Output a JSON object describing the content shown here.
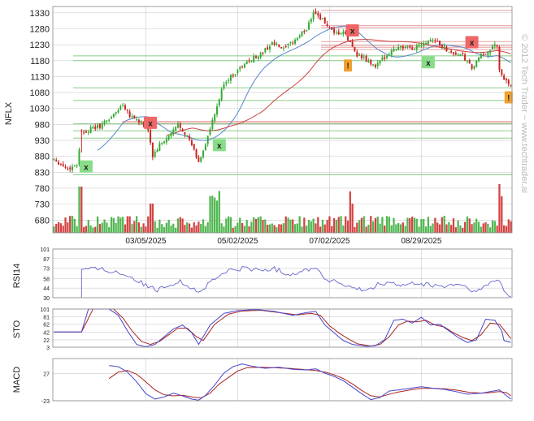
{
  "watermark": "© 2012 Tech Trader ~ www.techtrader.ai",
  "colors": {
    "up": "#33aa33",
    "down": "#cc2222",
    "grid": "#cccccc",
    "sma_short": "#5588cc",
    "sma_long": "#cc4444",
    "support": "#88cc88",
    "resistance": "#e8a0a0",
    "indicator_main": "#4444cc",
    "indicator_signal": "#aa2222",
    "badge_green": "#88dd88",
    "badge_red": "#ee6666",
    "badge_orange": "#f0a030"
  },
  "chart_data": [
    {
      "type": "candlestick",
      "ylabel": "NFLX",
      "y_ticks": [
        "1330",
        "1280",
        "1230",
        "1180",
        "1130",
        "1080",
        "1030",
        "980",
        "930",
        "880",
        "830",
        "780",
        "730",
        "680"
      ],
      "ylim": [
        640,
        1350
      ],
      "x_ticks": [
        "03/05/2025",
        "05/02/2025",
        "07/02/2025",
        "08/29/2025"
      ],
      "x_tick_index": [
        40,
        80,
        120,
        160
      ],
      "n_bars": 200,
      "price_path": [
        [
          0,
          872
        ],
        [
          6,
          840
        ],
        [
          10,
          855
        ],
        [
          12,
          955
        ],
        [
          20,
          975
        ],
        [
          26,
          1010
        ],
        [
          30,
          1045
        ],
        [
          33,
          1010
        ],
        [
          38,
          985
        ],
        [
          41,
          965
        ],
        [
          43,
          880
        ],
        [
          46,
          915
        ],
        [
          50,
          940
        ],
        [
          54,
          980
        ],
        [
          57,
          955
        ],
        [
          60,
          915
        ],
        [
          63,
          860
        ],
        [
          66,
          920
        ],
        [
          68,
          965
        ],
        [
          70,
          1010
        ],
        [
          74,
          1110
        ],
        [
          80,
          1150
        ],
        [
          86,
          1185
        ],
        [
          90,
          1200
        ],
        [
          95,
          1235
        ],
        [
          100,
          1215
        ],
        [
          105,
          1245
        ],
        [
          110,
          1280
        ],
        [
          113,
          1335
        ],
        [
          118,
          1300
        ],
        [
          122,
          1260
        ],
        [
          126,
          1270
        ],
        [
          132,
          1200
        ],
        [
          136,
          1180
        ],
        [
          140,
          1160
        ],
        [
          145,
          1200
        ],
        [
          150,
          1225
        ],
        [
          156,
          1215
        ],
        [
          160,
          1235
        ],
        [
          165,
          1250
        ],
        [
          169,
          1225
        ],
        [
          173,
          1205
        ],
        [
          178,
          1195
        ],
        [
          182,
          1155
        ],
        [
          186,
          1195
        ],
        [
          190,
          1215
        ],
        [
          193,
          1230
        ],
        [
          194,
          1145
        ],
        [
          196,
          1120
        ],
        [
          199,
          1105
        ]
      ],
      "support_levels": [
        1195,
        1180,
        1095,
        1055,
        982,
        960,
        937,
        822
      ],
      "resistance_levels": [
        1338,
        1290,
        1284,
        1240,
        1228,
        1222,
        1215,
        990,
        985
      ],
      "signals": [
        {
          "label": "x",
          "type": "buy",
          "bar": 14,
          "price": 848
        },
        {
          "label": "x",
          "type": "sell",
          "bar": 42,
          "price": 985
        },
        {
          "label": "x",
          "type": "buy",
          "bar": 72,
          "price": 915
        },
        {
          "label": "x",
          "type": "sell",
          "bar": 130,
          "price": 1275
        },
        {
          "label": "!",
          "type": "alert",
          "bar": 128,
          "price": 1165
        },
        {
          "label": "x",
          "type": "buy",
          "bar": 163,
          "price": 1175
        },
        {
          "label": "x",
          "type": "sell",
          "bar": 182,
          "price": 1238
        },
        {
          "label": "!",
          "type": "alert",
          "bar": 198,
          "price": 1065
        }
      ]
    },
    {
      "type": "line",
      "ylabel": "RSI14",
      "y_ticks": [
        "101",
        "87",
        "73",
        "58",
        "44",
        "30"
      ],
      "ylim": [
        30,
        101
      ],
      "path": [
        [
          12,
          72
        ],
        [
          20,
          72
        ],
        [
          28,
          67
        ],
        [
          34,
          60
        ],
        [
          40,
          48
        ],
        [
          45,
          40
        ],
        [
          50,
          50
        ],
        [
          55,
          53
        ],
        [
          60,
          45
        ],
        [
          63,
          37
        ],
        [
          68,
          52
        ],
        [
          75,
          68
        ],
        [
          82,
          73
        ],
        [
          90,
          70
        ],
        [
          96,
          72
        ],
        [
          102,
          64
        ],
        [
          108,
          68
        ],
        [
          112,
          73
        ],
        [
          114,
          75
        ],
        [
          118,
          57
        ],
        [
          124,
          52
        ],
        [
          130,
          43
        ],
        [
          136,
          40
        ],
        [
          140,
          48
        ],
        [
          146,
          52
        ],
        [
          152,
          47
        ],
        [
          158,
          51
        ],
        [
          164,
          48
        ],
        [
          170,
          46
        ],
        [
          176,
          50
        ],
        [
          181,
          43
        ],
        [
          184,
          37
        ],
        [
          190,
          52
        ],
        [
          194,
          55
        ],
        [
          196,
          40
        ],
        [
          199,
          33
        ]
      ]
    },
    {
      "type": "line",
      "ylabel": "STO",
      "y_ticks": [
        "101",
        "81",
        "62",
        "42",
        "22",
        "3"
      ],
      "ylim": [
        3,
        101
      ],
      "series": [
        {
          "path": [
            [
              0,
              42
            ],
            [
              12,
              42
            ],
            [
              15,
              101
            ],
            [
              24,
              101
            ],
            [
              28,
              85
            ],
            [
              32,
              45
            ],
            [
              36,
              10
            ],
            [
              40,
              4
            ],
            [
              44,
              10
            ],
            [
              48,
              30
            ],
            [
              52,
              50
            ],
            [
              56,
              60
            ],
            [
              60,
              40
            ],
            [
              63,
              10
            ],
            [
              68,
              60
            ],
            [
              74,
              90
            ],
            [
              80,
              97
            ],
            [
              88,
              100
            ],
            [
              96,
              95
            ],
            [
              104,
              85
            ],
            [
              110,
              92
            ],
            [
              114,
              95
            ],
            [
              118,
              60
            ],
            [
              122,
              40
            ],
            [
              126,
              20
            ],
            [
              130,
              10
            ],
            [
              136,
              5
            ],
            [
              140,
              7
            ],
            [
              144,
              22
            ],
            [
              148,
              72
            ],
            [
              152,
              75
            ],
            [
              156,
              65
            ],
            [
              160,
              80
            ],
            [
              164,
              60
            ],
            [
              168,
              62
            ],
            [
              172,
              45
            ],
            [
              176,
              28
            ],
            [
              180,
              15
            ],
            [
              184,
              22
            ],
            [
              188,
              75
            ],
            [
              192,
              72
            ],
            [
              195,
              45
            ],
            [
              196,
              20
            ],
            [
              199,
              15
            ]
          ]
        },
        {
          "path": [
            [
              0,
              42
            ],
            [
              12,
              42
            ],
            [
              17,
              101
            ],
            [
              26,
              101
            ],
            [
              30,
              78
            ],
            [
              34,
              45
            ],
            [
              38,
              18
            ],
            [
              42,
              10
            ],
            [
              46,
              18
            ],
            [
              50,
              35
            ],
            [
              54,
              52
            ],
            [
              58,
              52
            ],
            [
              62,
              30
            ],
            [
              65,
              20
            ],
            [
              70,
              62
            ],
            [
              76,
              88
            ],
            [
              82,
              96
            ],
            [
              90,
              98
            ],
            [
              98,
              92
            ],
            [
              106,
              86
            ],
            [
              112,
              90
            ],
            [
              116,
              85
            ],
            [
              120,
              58
            ],
            [
              124,
              40
            ],
            [
              128,
              25
            ],
            [
              132,
              12
            ],
            [
              138,
              6
            ],
            [
              142,
              10
            ],
            [
              146,
              30
            ],
            [
              150,
              60
            ],
            [
              154,
              70
            ],
            [
              158,
              68
            ],
            [
              162,
              72
            ],
            [
              166,
              60
            ],
            [
              170,
              55
            ],
            [
              174,
              40
            ],
            [
              178,
              28
            ],
            [
              182,
              20
            ],
            [
              186,
              35
            ],
            [
              190,
              65
            ],
            [
              194,
              62
            ],
            [
              197,
              40
            ],
            [
              199,
              25
            ]
          ]
        }
      ]
    },
    {
      "type": "line",
      "ylabel": "MACD",
      "y_ticks": [
        "27",
        "-23"
      ],
      "ylim": [
        -23,
        55
      ],
      "series": [
        {
          "path": [
            [
              24,
              42
            ],
            [
              28,
              40
            ],
            [
              32,
              30
            ],
            [
              36,
              12
            ],
            [
              40,
              -10
            ],
            [
              44,
              -20
            ],
            [
              48,
              -16
            ],
            [
              52,
              -9
            ],
            [
              56,
              -14
            ],
            [
              60,
              -20
            ],
            [
              63,
              -22
            ],
            [
              66,
              -13
            ],
            [
              70,
              6
            ],
            [
              74,
              28
            ],
            [
              78,
              40
            ],
            [
              82,
              45
            ],
            [
              86,
              41
            ],
            [
              92,
              37
            ],
            [
              98,
              39
            ],
            [
              104,
              35
            ],
            [
              110,
              34
            ],
            [
              114,
              36
            ],
            [
              118,
              28
            ],
            [
              122,
              22
            ],
            [
              126,
              14
            ],
            [
              130,
              2
            ],
            [
              134,
              -10
            ],
            [
              138,
              -21
            ],
            [
              142,
              -17
            ],
            [
              146,
              -5
            ],
            [
              150,
              -3
            ],
            [
              155,
              0
            ],
            [
              160,
              3
            ],
            [
              165,
              0
            ],
            [
              170,
              -2
            ],
            [
              175,
              -6
            ],
            [
              180,
              -11
            ],
            [
              186,
              -9
            ],
            [
              190,
              -6
            ],
            [
              194,
              -3
            ],
            [
              196,
              -10
            ],
            [
              199,
              -20
            ]
          ]
        },
        {
          "path": [
            [
              24,
              18
            ],
            [
              28,
              30
            ],
            [
              32,
              33
            ],
            [
              36,
              26
            ],
            [
              40,
              12
            ],
            [
              44,
              -3
            ],
            [
              48,
              -12
            ],
            [
              52,
              -14
            ],
            [
              56,
              -13
            ],
            [
              60,
              -16
            ],
            [
              64,
              -18
            ],
            [
              68,
              -9
            ],
            [
              72,
              8
            ],
            [
              76,
              20
            ],
            [
              80,
              32
            ],
            [
              84,
              38
            ],
            [
              90,
              39
            ],
            [
              96,
              38
            ],
            [
              102,
              37
            ],
            [
              108,
              35
            ],
            [
              114,
              33
            ],
            [
              118,
              30
            ],
            [
              122,
              25
            ],
            [
              126,
              18
            ],
            [
              130,
              8
            ],
            [
              134,
              -4
            ],
            [
              138,
              -14
            ],
            [
              142,
              -16
            ],
            [
              146,
              -11
            ],
            [
              150,
              -7
            ],
            [
              155,
              -3
            ],
            [
              160,
              0
            ],
            [
              165,
              0
            ],
            [
              170,
              -1
            ],
            [
              175,
              -3
            ],
            [
              180,
              -7
            ],
            [
              186,
              -9
            ],
            [
              190,
              -8
            ],
            [
              194,
              -6
            ],
            [
              197,
              -8
            ],
            [
              199,
              -14
            ]
          ]
        }
      ]
    }
  ]
}
